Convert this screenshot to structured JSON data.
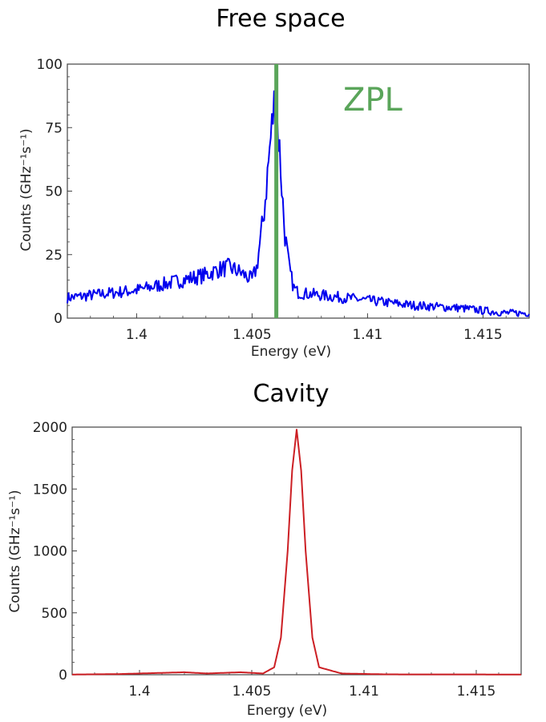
{
  "chart_data": [
    {
      "type": "line",
      "title": "Free space",
      "xlabel": "Energy (eV)",
      "ylabel": "Counts (GHz⁻¹s⁻¹)",
      "xlim": [
        1.397,
        1.417
      ],
      "ylim": [
        0,
        100
      ],
      "xticks": [
        1.4,
        1.405,
        1.41,
        1.415
      ],
      "xtick_labels": [
        "1.4",
        "1.405",
        "1.41",
        "1.415"
      ],
      "yticks": [
        0,
        25,
        50,
        75,
        100
      ],
      "ytick_labels": [
        "0",
        "25",
        "50",
        "75",
        "100"
      ],
      "grid": false,
      "series": [
        {
          "color": "#0000ee",
          "x": [
            1.397,
            1.398,
            1.399,
            1.4,
            1.401,
            1.402,
            1.403,
            1.4035,
            1.404,
            1.4045,
            1.405,
            1.4052,
            1.4055,
            1.4058,
            1.406,
            1.4062,
            1.4064,
            1.4066,
            1.4068,
            1.407,
            1.408,
            1.409,
            1.41,
            1.411,
            1.412,
            1.413,
            1.414,
            1.415,
            1.416,
            1.417
          ],
          "y": [
            8,
            9,
            10,
            11,
            13,
            15,
            17,
            19,
            20,
            18,
            15,
            20,
            40,
            70,
            88,
            65,
            35,
            20,
            12,
            10,
            9,
            8,
            7,
            6,
            5,
            4.5,
            4,
            3,
            2,
            2
          ]
        }
      ],
      "markers": [
        {
          "label": "ZPL",
          "x": 1.40605,
          "color": "#5aa55a"
        }
      ]
    },
    {
      "type": "line",
      "title": "Cavity",
      "xlabel": "Energy (eV)",
      "ylabel": "Counts (GHz⁻¹s⁻¹)",
      "xlim": [
        1.397,
        1.417
      ],
      "ylim": [
        0,
        2000
      ],
      "xticks": [
        1.4,
        1.405,
        1.41,
        1.415
      ],
      "xtick_labels": [
        "1.4",
        "1.405",
        "1.41",
        "1.415"
      ],
      "yticks": [
        0,
        500,
        1000,
        1500,
        2000
      ],
      "ytick_labels": [
        "0",
        "500",
        "1000",
        "1500",
        "2000"
      ],
      "grid": false,
      "series": [
        {
          "color": "#cc1f24",
          "x": [
            1.397,
            1.399,
            1.402,
            1.403,
            1.4045,
            1.4055,
            1.406,
            1.4063,
            1.4066,
            1.4068,
            1.407,
            1.4072,
            1.4074,
            1.4077,
            1.408,
            1.409,
            1.411,
            1.417
          ],
          "y": [
            2,
            5,
            20,
            10,
            20,
            10,
            60,
            300,
            1000,
            1650,
            1980,
            1650,
            1000,
            300,
            60,
            10,
            3,
            2
          ]
        }
      ]
    }
  ]
}
